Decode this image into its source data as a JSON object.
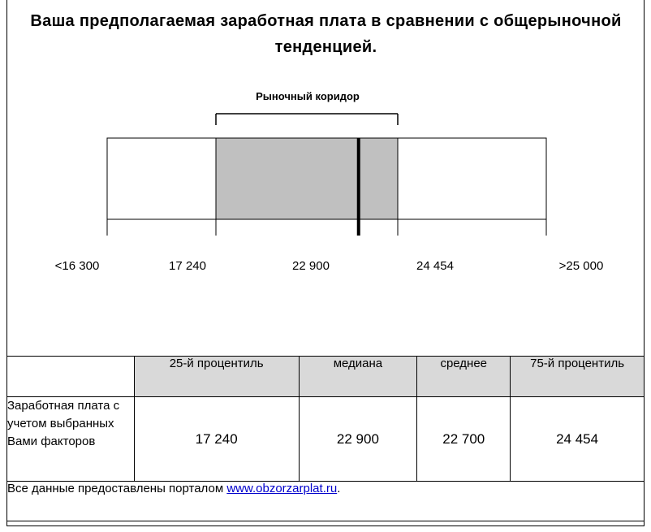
{
  "title": "Ваша предполагаемая заработная плата в сравнении с общерыночной тенденцией.",
  "chart_data": {
    "type": "range",
    "corridor_label": "Рыночный коридор",
    "ticks": [
      "<16 300",
      "17 240",
      "22 900",
      "24 454",
      ">25 000"
    ],
    "scale": [
      16300,
      25000
    ],
    "corridor": [
      17240,
      24454
    ],
    "median": 22900
  },
  "table": {
    "headers": [
      "25-й процентиль",
      "медиана",
      "среднее",
      "75-й процентиль"
    ],
    "row_label": "Заработная плата с учетом выбранных Вами факторов",
    "values": [
      "17 240",
      "22 900",
      "22 700",
      "24 454"
    ]
  },
  "footer": {
    "text": "Все данные предоставлены порталом ",
    "link": "www.obzorzarplat.ru",
    "suffix": "."
  },
  "colors": {
    "corridor_fill": "#c0c0c0",
    "header_fill": "#d9d9d9",
    "link": "#0000cc"
  }
}
